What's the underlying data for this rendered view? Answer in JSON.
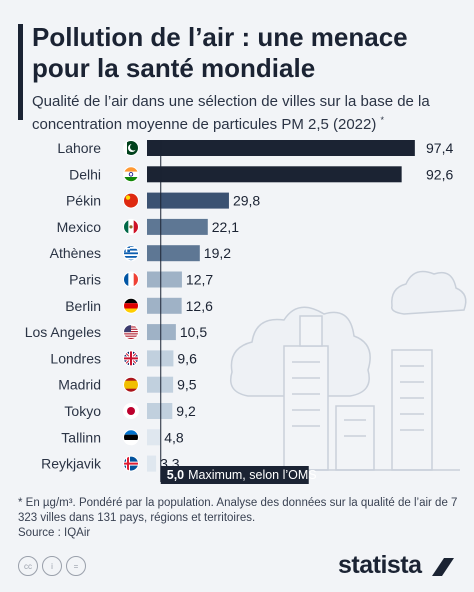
{
  "header": {
    "title": "Pollution de l’air : une menace pour la santé mondiale",
    "subtitle": "Qualité de l’air dans une sélection de villes sur la base de la concentration moyenne de particules PM 2,5 (2022)",
    "subtitle_mark": "*"
  },
  "chart_data": {
    "type": "bar",
    "orientation": "horizontal",
    "categories": [
      "Lahore",
      "Delhi",
      "Pékin",
      "Mexico",
      "Athènes",
      "Paris",
      "Berlin",
      "Los Angeles",
      "Londres",
      "Madrid",
      "Tokyo",
      "Tallinn",
      "Reykjavik"
    ],
    "values": [
      97.4,
      92.6,
      29.8,
      22.1,
      19.2,
      12.7,
      12.6,
      10.5,
      9.6,
      9.5,
      9.2,
      4.8,
      3.3
    ],
    "value_labels": [
      "97,4",
      "92,6",
      "29,8",
      "22,1",
      "19,2",
      "12,7",
      "12,6",
      "10,5",
      "9,6",
      "9,5",
      "9,2",
      "4,8",
      "3,3"
    ],
    "flags": [
      "pakistan",
      "india",
      "china",
      "mexico",
      "greece",
      "france",
      "germany",
      "usa",
      "uk",
      "spain",
      "japan",
      "estonia",
      "iceland"
    ],
    "xlim": [
      0,
      100
    ],
    "reference_line": {
      "value": 5.0,
      "label_value": "5,0",
      "label_text": "Maximum, selon l’OMS"
    },
    "bar_colors": [
      "#1b2333",
      "#1b2333",
      "#3b5272",
      "#5e7794",
      "#5e7794",
      "#9fb2c6",
      "#9fb2c6",
      "#9fb2c6",
      "#c1d0de",
      "#c1d0de",
      "#c1d0de",
      "#dfe7ef",
      "#dfe7ef"
    ]
  },
  "footer": {
    "footnote": "* En µg/m³. Pondéré par la population. Analyse des données sur la qualité de l’air de 7 323 villes dans 131 pays, régions et territoires.",
    "source": "Source : IQAir",
    "brand": "statista"
  },
  "colors": {
    "background": "#f2f4f7",
    "text": "#1b2333",
    "illustration": "#c9d0da"
  }
}
